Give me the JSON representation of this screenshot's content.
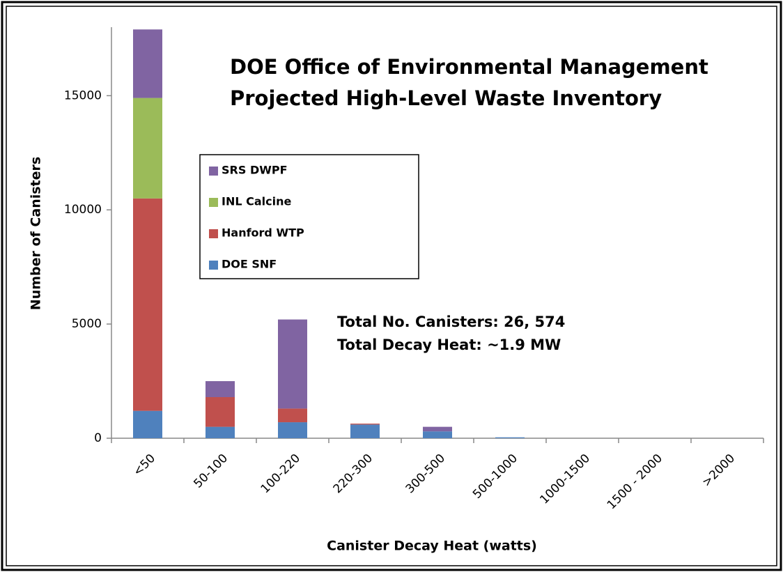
{
  "chart_data": {
    "type": "stacked_bar",
    "title": [
      "DOE Office of Environmental Management",
      "Projected High-Level Waste Inventory"
    ],
    "x_label": "Canister Decay Heat (watts)",
    "y_label": "Number of Canisters",
    "annotations": [
      "Total No. Canisters: 26, 574",
      "Total Decay Heat: ~1.9 MW"
    ],
    "categories": [
      "<50",
      "50-100",
      "100-220",
      "220-300",
      "300-500",
      "500-1000",
      "1000-1500",
      "1500 - 2000",
      ">2000"
    ],
    "series": [
      {
        "name": "DOE SNF",
        "color": "#4f81bd",
        "values": [
          1200,
          500,
          700,
          600,
          300,
          40,
          0,
          0,
          0
        ]
      },
      {
        "name": "Hanford WTP",
        "color": "#c0504d",
        "values": [
          9300,
          1300,
          600,
          40,
          0,
          0,
          0,
          0,
          0
        ]
      },
      {
        "name": "INL Calcine",
        "color": "#9bbb59",
        "values": [
          4400,
          0,
          0,
          0,
          0,
          0,
          0,
          0,
          0
        ]
      },
      {
        "name": "SRS DWPF",
        "color": "#8064a2",
        "values": [
          3000,
          700,
          3900,
          0,
          200,
          0,
          0,
          0,
          0
        ]
      }
    ],
    "ylim": [
      0,
      18000
    ],
    "yticks": [
      0,
      5000,
      10000,
      15000
    ]
  }
}
